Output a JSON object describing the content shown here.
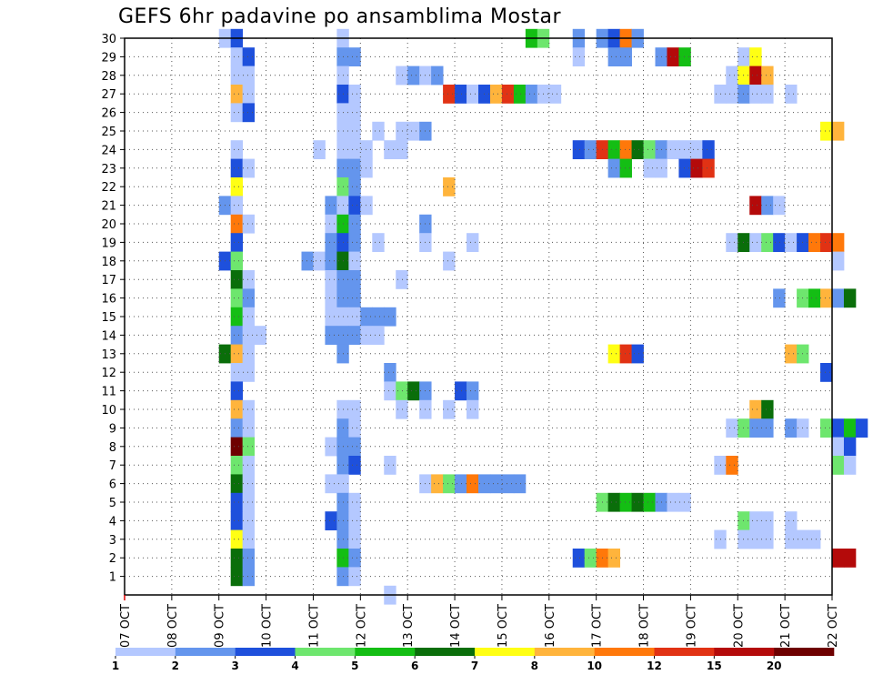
{
  "chart_data": {
    "type": "heatmap",
    "title": "GEFS 6hr padavine po ansamblima Mostar",
    "x_tick_labels": [
      "07 OCT",
      "08 OCT",
      "09 OCT",
      "10 OCT",
      "11 OCT",
      "12 OCT",
      "13 OCT",
      "14 OCT",
      "15 OCT",
      "16 OCT",
      "17 OCT",
      "18 OCT",
      "19 OCT",
      "20 OCT",
      "21 OCT",
      "22 OCT"
    ],
    "x_range_days": [
      0,
      15
    ],
    "y_range": [
      0,
      30
    ],
    "y_ticks": [
      1,
      2,
      3,
      4,
      5,
      6,
      7,
      8,
      9,
      10,
      11,
      12,
      13,
      14,
      15,
      16,
      17,
      18,
      19,
      20,
      21,
      22,
      23,
      24,
      25,
      26,
      27,
      28,
      29,
      30
    ],
    "grid": true,
    "grid_style": "dotted",
    "legend": {
      "position": "bottom",
      "boundaries": [
        "1",
        "2",
        "3",
        "4",
        "5",
        "6",
        "7",
        "8",
        "10",
        "12",
        "15",
        "20"
      ],
      "colors": [
        "#b4c8ff",
        "#6495ed",
        "#1e50dc",
        "#6ee66e",
        "#14be14",
        "#0a6e0a",
        "#ffff14",
        "#ffb43c",
        "#ff780a",
        "#e13214",
        "#b40a0a",
        "#6e0000"
      ]
    },
    "cell_width_days": 0.25,
    "cells": [
      [
        30,
        2.0,
        1
      ],
      [
        30,
        2.25,
        3
      ],
      [
        30,
        4.5,
        1
      ],
      [
        30,
        8.5,
        5
      ],
      [
        30,
        8.75,
        4
      ],
      [
        30,
        9.5,
        2
      ],
      [
        30,
        10.0,
        2
      ],
      [
        30,
        10.25,
        3
      ],
      [
        30,
        10.5,
        9
      ],
      [
        30,
        10.75,
        2
      ],
      [
        29,
        2.25,
        1
      ],
      [
        29,
        2.5,
        3
      ],
      [
        29,
        4.5,
        2
      ],
      [
        29,
        4.75,
        2
      ],
      [
        29,
        9.5,
        1
      ],
      [
        29,
        10.25,
        2
      ],
      [
        29,
        10.5,
        2
      ],
      [
        29,
        11.25,
        2
      ],
      [
        29,
        11.5,
        11
      ],
      [
        29,
        11.75,
        5
      ],
      [
        29,
        13.0,
        1
      ],
      [
        29,
        13.25,
        7
      ],
      [
        28,
        2.25,
        1
      ],
      [
        28,
        2.5,
        1
      ],
      [
        28,
        4.5,
        1
      ],
      [
        28,
        5.75,
        1
      ],
      [
        28,
        6.0,
        2
      ],
      [
        28,
        6.25,
        1
      ],
      [
        28,
        6.5,
        2
      ],
      [
        28,
        12.75,
        1
      ],
      [
        28,
        13.0,
        7
      ],
      [
        28,
        13.25,
        11
      ],
      [
        28,
        13.5,
        8
      ],
      [
        27,
        2.25,
        8
      ],
      [
        27,
        2.5,
        1
      ],
      [
        27,
        4.5,
        3
      ],
      [
        27,
        4.75,
        1
      ],
      [
        27,
        6.75,
        10
      ],
      [
        27,
        7.0,
        3
      ],
      [
        27,
        7.25,
        1
      ],
      [
        27,
        7.5,
        3
      ],
      [
        27,
        7.75,
        8
      ],
      [
        27,
        8.0,
        10
      ],
      [
        27,
        8.25,
        5
      ],
      [
        27,
        8.5,
        2
      ],
      [
        27,
        8.75,
        1
      ],
      [
        27,
        9.0,
        1
      ],
      [
        27,
        12.5,
        1
      ],
      [
        27,
        12.75,
        1
      ],
      [
        27,
        13.0,
        2
      ],
      [
        27,
        13.25,
        1
      ],
      [
        27,
        13.5,
        1
      ],
      [
        27,
        14.0,
        1
      ],
      [
        26,
        2.25,
        1
      ],
      [
        26,
        2.5,
        3
      ],
      [
        26,
        4.5,
        1
      ],
      [
        26,
        4.75,
        1
      ],
      [
        25,
        4.5,
        1
      ],
      [
        25,
        4.75,
        1
      ],
      [
        25,
        5.25,
        1
      ],
      [
        25,
        5.75,
        1
      ],
      [
        25,
        6.0,
        1
      ],
      [
        25,
        6.25,
        2
      ],
      [
        25,
        14.75,
        7
      ],
      [
        25,
        15.0,
        8
      ],
      [
        24,
        2.25,
        1
      ],
      [
        24,
        4.0,
        1
      ],
      [
        24,
        4.5,
        1
      ],
      [
        24,
        4.75,
        1
      ],
      [
        24,
        5.0,
        1
      ],
      [
        24,
        5.5,
        1
      ],
      [
        24,
        5.75,
        1
      ],
      [
        24,
        9.5,
        3
      ],
      [
        24,
        9.75,
        2
      ],
      [
        24,
        10.0,
        10
      ],
      [
        24,
        10.25,
        5
      ],
      [
        24,
        10.5,
        9
      ],
      [
        24,
        10.75,
        6
      ],
      [
        24,
        11.0,
        4
      ],
      [
        24,
        11.25,
        2
      ],
      [
        24,
        11.5,
        1
      ],
      [
        24,
        11.75,
        1
      ],
      [
        24,
        12.0,
        1
      ],
      [
        24,
        12.25,
        3
      ],
      [
        23,
        2.25,
        3
      ],
      [
        23,
        2.5,
        1
      ],
      [
        23,
        4.5,
        2
      ],
      [
        23,
        4.75,
        2
      ],
      [
        23,
        5.0,
        1
      ],
      [
        23,
        10.25,
        2
      ],
      [
        23,
        10.5,
        5
      ],
      [
        23,
        11.0,
        1
      ],
      [
        23,
        11.25,
        1
      ],
      [
        23,
        11.75,
        3
      ],
      [
        23,
        12.0,
        11
      ],
      [
        23,
        12.25,
        10
      ],
      [
        22,
        2.25,
        7
      ],
      [
        22,
        4.5,
        4
      ],
      [
        22,
        4.75,
        2
      ],
      [
        22,
        6.75,
        8
      ],
      [
        21,
        2.0,
        2
      ],
      [
        21,
        2.25,
        1
      ],
      [
        21,
        4.25,
        2
      ],
      [
        21,
        4.5,
        1
      ],
      [
        21,
        4.75,
        3
      ],
      [
        21,
        5.0,
        1
      ],
      [
        21,
        13.25,
        11
      ],
      [
        21,
        13.5,
        2
      ],
      [
        21,
        13.75,
        1
      ],
      [
        20,
        2.25,
        9
      ],
      [
        20,
        2.5,
        1
      ],
      [
        20,
        4.25,
        1
      ],
      [
        20,
        4.5,
        5
      ],
      [
        20,
        4.75,
        2
      ],
      [
        20,
        6.25,
        2
      ],
      [
        19,
        2.25,
        3
      ],
      [
        19,
        4.25,
        2
      ],
      [
        19,
        4.5,
        3
      ],
      [
        19,
        4.75,
        2
      ],
      [
        19,
        5.25,
        1
      ],
      [
        19,
        6.25,
        1
      ],
      [
        19,
        7.25,
        1
      ],
      [
        19,
        12.75,
        1
      ],
      [
        19,
        13.0,
        6
      ],
      [
        19,
        13.25,
        1
      ],
      [
        19,
        13.5,
        4
      ],
      [
        19,
        13.75,
        3
      ],
      [
        19,
        14.0,
        1
      ],
      [
        19,
        14.25,
        3
      ],
      [
        19,
        14.5,
        9
      ],
      [
        19,
        14.75,
        10
      ],
      [
        19,
        15.0,
        9
      ],
      [
        18,
        2.0,
        3
      ],
      [
        18,
        2.25,
        4
      ],
      [
        18,
        3.75,
        2
      ],
      [
        18,
        4.0,
        1
      ],
      [
        18,
        4.25,
        2
      ],
      [
        18,
        4.5,
        6
      ],
      [
        18,
        4.75,
        1
      ],
      [
        18,
        6.75,
        1
      ],
      [
        18,
        15.0,
        1
      ],
      [
        17,
        2.25,
        6
      ],
      [
        17,
        2.5,
        1
      ],
      [
        17,
        4.25,
        1
      ],
      [
        17,
        4.5,
        2
      ],
      [
        17,
        4.75,
        2
      ],
      [
        17,
        5.75,
        1
      ],
      [
        16,
        2.25,
        4
      ],
      [
        16,
        2.5,
        2
      ],
      [
        16,
        4.25,
        1
      ],
      [
        16,
        4.5,
        2
      ],
      [
        16,
        4.75,
        2
      ],
      [
        16,
        13.75,
        2
      ],
      [
        16,
        14.25,
        4
      ],
      [
        16,
        14.5,
        5
      ],
      [
        16,
        14.75,
        8
      ],
      [
        16,
        15.0,
        2
      ],
      [
        16,
        15.25,
        6
      ],
      [
        15,
        2.25,
        5
      ],
      [
        15,
        2.5,
        1
      ],
      [
        15,
        4.25,
        1
      ],
      [
        15,
        4.5,
        1
      ],
      [
        15,
        4.75,
        1
      ],
      [
        15,
        5.0,
        2
      ],
      [
        15,
        5.25,
        2
      ],
      [
        15,
        5.5,
        2
      ],
      [
        14,
        2.25,
        2
      ],
      [
        14,
        2.5,
        1
      ],
      [
        14,
        2.75,
        1
      ],
      [
        14,
        4.25,
        2
      ],
      [
        14,
        4.5,
        2
      ],
      [
        14,
        4.75,
        2
      ],
      [
        14,
        5.0,
        1
      ],
      [
        14,
        5.25,
        1
      ],
      [
        13,
        2.0,
        6
      ],
      [
        13,
        2.25,
        8
      ],
      [
        13,
        2.5,
        1
      ],
      [
        13,
        4.5,
        2
      ],
      [
        13,
        10.25,
        7
      ],
      [
        13,
        10.5,
        10
      ],
      [
        13,
        10.75,
        3
      ],
      [
        13,
        14.0,
        8
      ],
      [
        13,
        14.25,
        4
      ],
      [
        12,
        2.25,
        1
      ],
      [
        12,
        2.5,
        1
      ],
      [
        12,
        5.5,
        2
      ],
      [
        12,
        14.75,
        3
      ],
      [
        11,
        2.25,
        3
      ],
      [
        11,
        5.5,
        1
      ],
      [
        11,
        5.75,
        4
      ],
      [
        11,
        6.0,
        6
      ],
      [
        11,
        6.25,
        2
      ],
      [
        11,
        7.0,
        3
      ],
      [
        11,
        7.25,
        2
      ],
      [
        10,
        2.25,
        8
      ],
      [
        10,
        2.5,
        1
      ],
      [
        10,
        4.5,
        1
      ],
      [
        10,
        4.75,
        1
      ],
      [
        10,
        5.75,
        1
      ],
      [
        10,
        6.25,
        1
      ],
      [
        10,
        6.75,
        1
      ],
      [
        10,
        7.25,
        1
      ],
      [
        10,
        13.25,
        8
      ],
      [
        10,
        13.5,
        6
      ],
      [
        9,
        2.25,
        2
      ],
      [
        9,
        2.5,
        1
      ],
      [
        9,
        4.5,
        2
      ],
      [
        9,
        4.75,
        1
      ],
      [
        9,
        12.75,
        1
      ],
      [
        9,
        13.0,
        4
      ],
      [
        9,
        13.25,
        2
      ],
      [
        9,
        13.5,
        2
      ],
      [
        9,
        14.0,
        2
      ],
      [
        9,
        14.25,
        1
      ],
      [
        9,
        14.75,
        4
      ],
      [
        9,
        15.0,
        3
      ],
      [
        9,
        15.25,
        5
      ],
      [
        9,
        15.5,
        3
      ],
      [
        8,
        2.25,
        12
      ],
      [
        8,
        2.5,
        4
      ],
      [
        8,
        4.25,
        1
      ],
      [
        8,
        4.5,
        2
      ],
      [
        8,
        4.75,
        2
      ],
      [
        8,
        15.0,
        1
      ],
      [
        8,
        15.25,
        3
      ],
      [
        7,
        2.25,
        4
      ],
      [
        7,
        2.5,
        1
      ],
      [
        7,
        4.5,
        2
      ],
      [
        7,
        4.75,
        3
      ],
      [
        7,
        5.5,
        1
      ],
      [
        7,
        12.5,
        1
      ],
      [
        7,
        12.75,
        9
      ],
      [
        7,
        15.0,
        4
      ],
      [
        7,
        15.25,
        1
      ],
      [
        6,
        2.25,
        6
      ],
      [
        6,
        2.5,
        1
      ],
      [
        6,
        4.25,
        1
      ],
      [
        6,
        4.5,
        1
      ],
      [
        6,
        6.25,
        1
      ],
      [
        6,
        6.5,
        8
      ],
      [
        6,
        6.75,
        4
      ],
      [
        6,
        7.0,
        2
      ],
      [
        6,
        7.25,
        9
      ],
      [
        6,
        7.5,
        2
      ],
      [
        6,
        7.75,
        2
      ],
      [
        6,
        8.0,
        2
      ],
      [
        6,
        8.25,
        2
      ],
      [
        5,
        2.25,
        3
      ],
      [
        5,
        2.5,
        1
      ],
      [
        5,
        4.5,
        2
      ],
      [
        5,
        4.75,
        1
      ],
      [
        5,
        10.0,
        4
      ],
      [
        5,
        10.25,
        6
      ],
      [
        5,
        10.5,
        5
      ],
      [
        5,
        10.75,
        6
      ],
      [
        5,
        11.0,
        5
      ],
      [
        5,
        11.25,
        2
      ],
      [
        5,
        11.5,
        1
      ],
      [
        5,
        11.75,
        1
      ],
      [
        4,
        2.25,
        3
      ],
      [
        4,
        2.5,
        1
      ],
      [
        4,
        4.25,
        3
      ],
      [
        4,
        4.5,
        2
      ],
      [
        4,
        4.75,
        1
      ],
      [
        4,
        13.0,
        4
      ],
      [
        4,
        13.25,
        1
      ],
      [
        4,
        13.5,
        1
      ],
      [
        4,
        14.0,
        1
      ],
      [
        3,
        2.25,
        7
      ],
      [
        3,
        2.5,
        1
      ],
      [
        3,
        4.5,
        2
      ],
      [
        3,
        4.75,
        1
      ],
      [
        3,
        12.5,
        1
      ],
      [
        3,
        13.0,
        1
      ],
      [
        3,
        13.25,
        1
      ],
      [
        3,
        13.5,
        1
      ],
      [
        3,
        14.0,
        1
      ],
      [
        3,
        14.25,
        1
      ],
      [
        3,
        14.5,
        1
      ],
      [
        2,
        2.25,
        6
      ],
      [
        2,
        2.5,
        2
      ],
      [
        2,
        4.5,
        5
      ],
      [
        2,
        4.75,
        2
      ],
      [
        2,
        9.5,
        3
      ],
      [
        2,
        9.75,
        4
      ],
      [
        2,
        10.0,
        9
      ],
      [
        2,
        10.25,
        8
      ],
      [
        2,
        15.0,
        11
      ],
      [
        2,
        15.25,
        11
      ],
      [
        1,
        2.25,
        6
      ],
      [
        1,
        2.5,
        2
      ],
      [
        1,
        4.5,
        2
      ],
      [
        1,
        4.75,
        1
      ],
      [
        0,
        5.5,
        1
      ]
    ]
  }
}
